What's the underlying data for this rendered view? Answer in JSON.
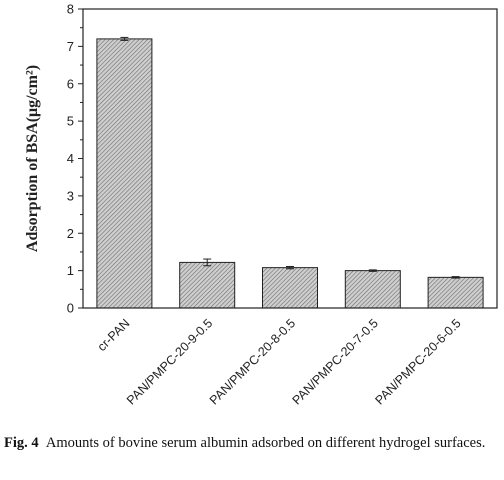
{
  "chart_data": {
    "type": "bar",
    "categories": [
      "cr-PAN",
      "PAN/PMPC-20-9-0.5",
      "PAN/PMPC-20-8-0.5",
      "PAN/PMPC-20-7-0.5",
      "PAN/PMPC-20-6-0.5"
    ],
    "values": [
      7.2,
      1.22,
      1.08,
      1.0,
      0.82
    ],
    "errors": [
      0.04,
      0.09,
      0.03,
      0.02,
      0.02
    ],
    "title": "",
    "xlabel": "",
    "ylabel": "Adsorption of BSA(μg/cm²)",
    "ylim": [
      0,
      8
    ],
    "yticks": [
      "0",
      "1",
      "2",
      "3",
      "4",
      "5",
      "6",
      "7",
      "8"
    ],
    "grid": false,
    "bar_fill": "hatched gray"
  },
  "caption": {
    "fig_label": "Fig. 4",
    "text": "Amounts of bovine serum albumin adsorbed on different hydrogel surfaces."
  },
  "colors": {
    "bar_base": "#c8c8c8",
    "hatch": "#6e6e6e",
    "axis": "#222222"
  }
}
